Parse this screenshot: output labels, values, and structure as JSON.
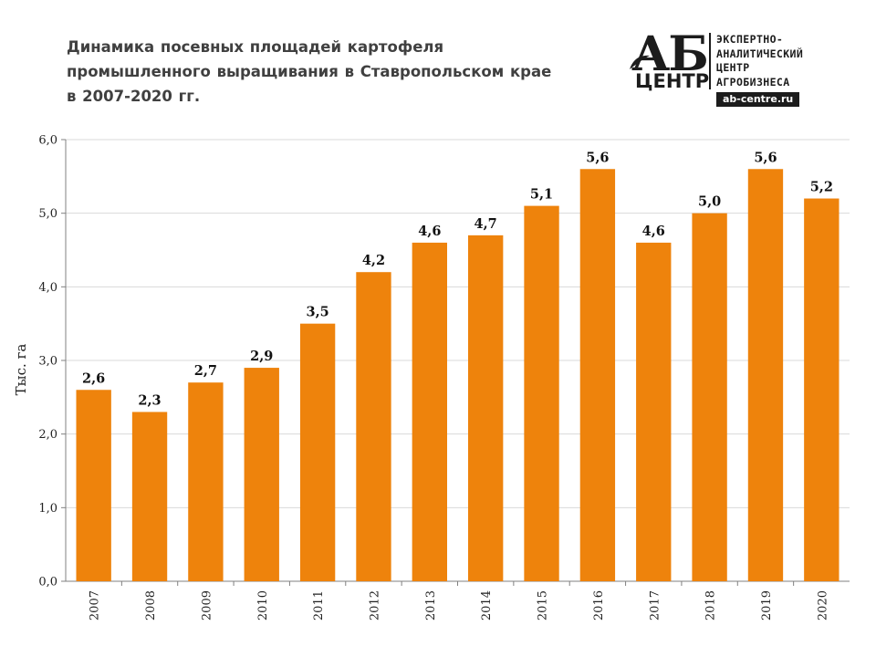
{
  "title_lines": [
    "Динамика посевных площадей картофеля",
    "промышленного выращивания в Ставропольском крае",
    "в 2007-2020 гг."
  ],
  "logo": {
    "mark": "АБ",
    "mark2": "ЦЕНТР",
    "org_lines": [
      "ЭКСПЕРТНО-",
      "АНАЛИТИЧЕСКИЙ",
      "ЦЕНТР",
      "АГРОБИЗНЕСА"
    ],
    "site": "ab-centre.ru"
  },
  "chart_data": {
    "type": "bar",
    "title": "Динамика посевных площадей картофеля промышленного выращивания в Ставропольском крае в 2007-2020 гг.",
    "categories": [
      "2007",
      "2008",
      "2009",
      "2010",
      "2011",
      "2012",
      "2013",
      "2014",
      "2015",
      "2016",
      "2017",
      "2018",
      "2019",
      "2020"
    ],
    "values": [
      2.6,
      2.3,
      2.7,
      2.9,
      3.5,
      4.2,
      4.6,
      4.7,
      5.1,
      5.6,
      4.6,
      5.0,
      5.6,
      5.2
    ],
    "value_labels": [
      "2,6",
      "2,3",
      "2,7",
      "2,9",
      "3,5",
      "4,2",
      "4,6",
      "4,7",
      "5,1",
      "5,6",
      "4,6",
      "5,0",
      "5,6",
      "5,2"
    ],
    "ylabel": "Тыс. га",
    "xlabel": "",
    "ylim": [
      0,
      6
    ],
    "yticks": [
      0,
      1,
      2,
      3,
      4,
      5,
      6
    ],
    "ytick_labels": [
      "0,0",
      "1,0",
      "2,0",
      "3,0",
      "4,0",
      "5,0",
      "6,0"
    ],
    "grid": true,
    "bar_color": "#ee830c",
    "grid_color": "#d9d9d9"
  }
}
